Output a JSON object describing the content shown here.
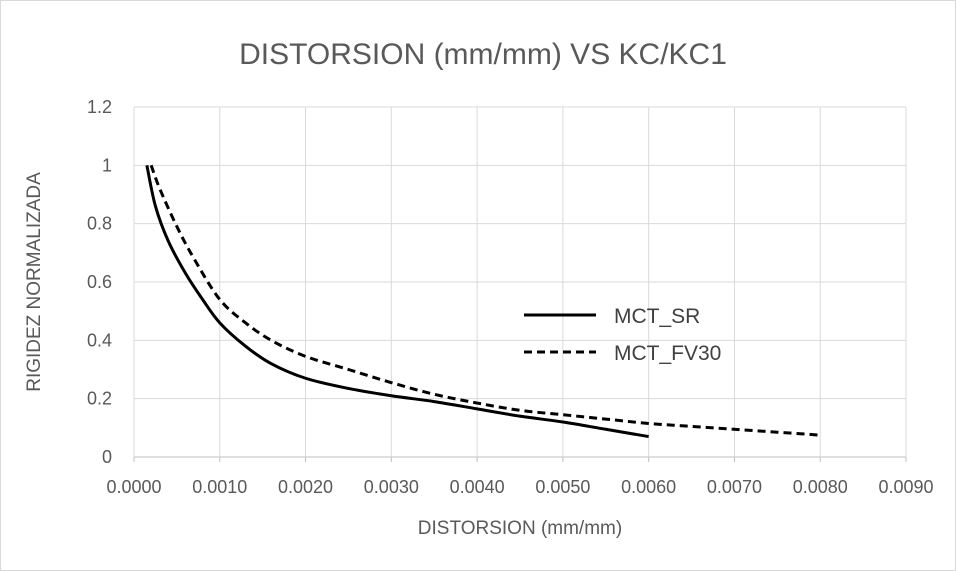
{
  "chart_data": {
    "type": "line",
    "title": "DISTORSION (mm/mm) VS KC/KC1",
    "xlabel": "DISTORSION (mm/mm)",
    "ylabel": "RIGIDEZ NORMALIZADA",
    "xlim": [
      0,
      0.009
    ],
    "ylim": [
      0,
      1.2
    ],
    "x_ticks": [
      "0.0000",
      "0.0010",
      "0.0020",
      "0.0030",
      "0.0040",
      "0.0050",
      "0.0060",
      "0.0070",
      "0.0080",
      "0.0090"
    ],
    "y_ticks": [
      "0",
      "0.2",
      "0.4",
      "0.6",
      "0.8",
      "1",
      "1.2"
    ],
    "grid": true,
    "legend_position": "center-right",
    "series": [
      {
        "name": "MCT_SR",
        "style": "solid",
        "color": "#000000",
        "x": [
          0.00015,
          0.00025,
          0.0004,
          0.0006,
          0.0008,
          0.001,
          0.0013,
          0.0016,
          0.002,
          0.0025,
          0.003,
          0.0035,
          0.004,
          0.0045,
          0.005,
          0.0055,
          0.006
        ],
        "y": [
          1.0,
          0.86,
          0.74,
          0.63,
          0.54,
          0.46,
          0.38,
          0.32,
          0.27,
          0.235,
          0.21,
          0.19,
          0.165,
          0.14,
          0.12,
          0.095,
          0.07
        ]
      },
      {
        "name": "MCT_FV30",
        "style": "dashed",
        "color": "#000000",
        "x": [
          0.0002,
          0.0003,
          0.0005,
          0.0007,
          0.001,
          0.0013,
          0.0016,
          0.002,
          0.0025,
          0.003,
          0.0035,
          0.004,
          0.0045,
          0.005,
          0.0055,
          0.006,
          0.0065,
          0.007,
          0.0075,
          0.008
        ],
        "y": [
          1.0,
          0.92,
          0.79,
          0.68,
          0.54,
          0.46,
          0.4,
          0.345,
          0.3,
          0.255,
          0.215,
          0.185,
          0.16,
          0.145,
          0.13,
          0.115,
          0.105,
          0.095,
          0.085,
          0.075
        ]
      }
    ]
  }
}
